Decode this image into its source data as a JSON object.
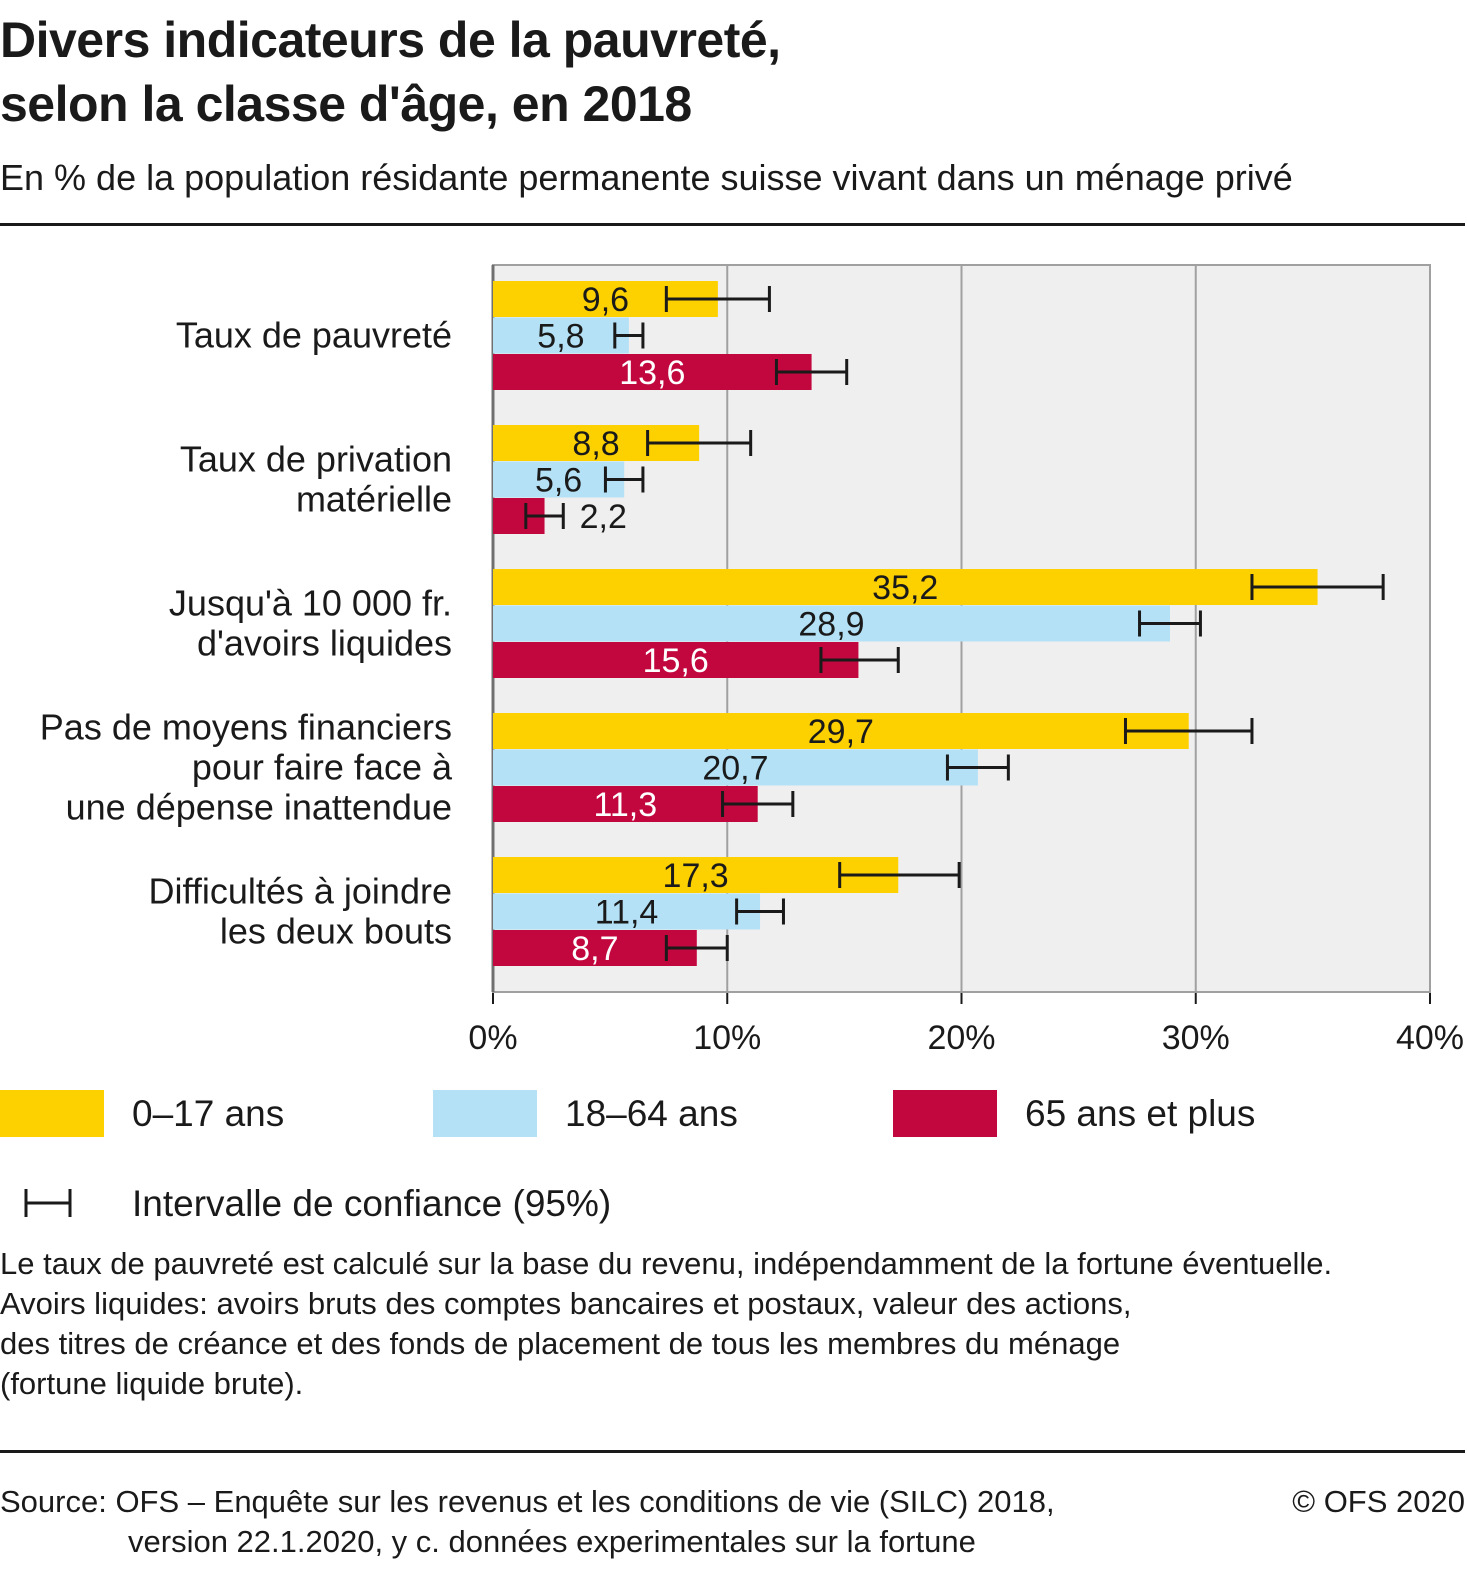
{
  "title_line1": "Divers indicateurs de la pauvreté,",
  "title_line2": "selon la classe d'âge, en 2018",
  "subtitle": "En % de la population résidante permanente suisse vivant dans un ménage privé",
  "chart_data": {
    "type": "bar",
    "orientation": "horizontal",
    "categories": [
      [
        "Taux de pauvreté"
      ],
      [
        "Taux de privation",
        "matérielle"
      ],
      [
        "Jusqu'à 10 000 fr.",
        "d'avoirs liquides"
      ],
      [
        "Pas de moyens financiers",
        "pour faire face à",
        "une dépense inattendue"
      ],
      [
        "Difficultés à joindre",
        "les deux bouts"
      ]
    ],
    "series": [
      {
        "name": "0–17 ans",
        "color": "#fdd000",
        "label_color": "#1a1a1a",
        "values": [
          9.6,
          8.8,
          35.2,
          29.7,
          17.3
        ],
        "labels": [
          "9,6",
          "8,8",
          "35,2",
          "29,7",
          "17,3"
        ],
        "ci": [
          [
            7.4,
            11.8
          ],
          [
            6.6,
            11.0
          ],
          [
            32.4,
            38.0
          ],
          [
            27.0,
            32.4
          ],
          [
            14.8,
            19.9
          ]
        ]
      },
      {
        "name": "18–64 ans",
        "color": "#b4e1f6",
        "label_color": "#1a1a1a",
        "values": [
          5.8,
          5.6,
          28.9,
          20.7,
          11.4
        ],
        "labels": [
          "5,8",
          "5,6",
          "28,9",
          "20,7",
          "11,4"
        ],
        "ci": [
          [
            5.2,
            6.4
          ],
          [
            4.8,
            6.4
          ],
          [
            27.6,
            30.2
          ],
          [
            19.4,
            22.0
          ],
          [
            10.4,
            12.4
          ]
        ]
      },
      {
        "name": "65 ans et plus",
        "color": "#c2073f",
        "label_color": "#ffffff",
        "values": [
          13.6,
          2.2,
          15.6,
          11.3,
          8.7
        ],
        "labels": [
          "13,6",
          "2,2",
          "15,6",
          "11,3",
          "8,7"
        ],
        "ci": [
          [
            12.1,
            15.1
          ],
          [
            1.4,
            3.0
          ],
          [
            14.0,
            17.3
          ],
          [
            9.8,
            12.8
          ],
          [
            7.4,
            10.0
          ]
        ]
      }
    ],
    "xlim": [
      0,
      40
    ],
    "x_ticks": [
      0,
      10,
      20,
      30,
      40
    ],
    "x_tick_labels": [
      "0%",
      "10%",
      "20%",
      "30%",
      "40%"
    ],
    "grid": true,
    "ci_legend": "Intervalle de confiance (95%)"
  },
  "legend": {
    "items": [
      {
        "label": "0–17 ans",
        "color": "#fdd000"
      },
      {
        "label": "18–64 ans",
        "color": "#b4e1f6"
      },
      {
        "label": "65 ans et plus",
        "color": "#c2073f"
      }
    ],
    "ci_label": "Intervalle de confiance (95%)"
  },
  "notes": [
    "Le taux de pauvreté est calculé sur la base du revenu, indépendamment de la fortune éventuelle.",
    "Avoirs liquides: avoirs bruts des comptes bancaires et postaux, valeur des actions,",
    "des titres de créance et des fonds de placement de tous les membres du ménage",
    "(fortune liquide brute)."
  ],
  "source_line1": "Source: OFS – Enquête sur les revenus et les conditions de vie (SILC) 2018,",
  "source_line2": "version 22.1.2020, y c. données experimentales sur la fortune",
  "copyright": "© OFS 2020"
}
